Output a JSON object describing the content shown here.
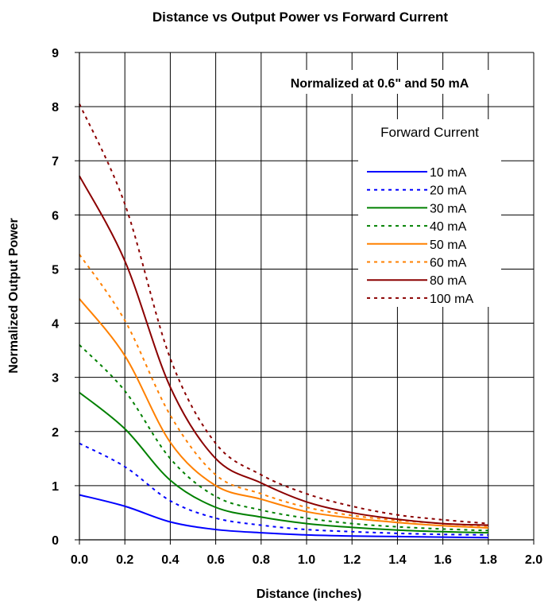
{
  "chart_data": {
    "type": "line",
    "title": "Distance vs Output Power vs Forward Current",
    "xlabel": "Distance (inches)",
    "ylabel": "Normalized Output Power",
    "xlim": [
      0,
      2.0
    ],
    "ylim": [
      0,
      9
    ],
    "x_ticks": [
      "0.0",
      "0.2",
      "0.4",
      "0.6",
      "0.8",
      "1.0",
      "1.2",
      "1.4",
      "1.6",
      "1.8",
      "2.0"
    ],
    "y_ticks": [
      "0",
      "1",
      "2",
      "3",
      "4",
      "5",
      "6",
      "7",
      "8",
      "9"
    ],
    "grid": true,
    "annotation": "Normalized at 0.6\" and 50 mA",
    "legend_title": "Forward Current",
    "legend_position": "right",
    "x": [
      0.0,
      0.2,
      0.4,
      0.6,
      0.8,
      1.0,
      1.2,
      1.4,
      1.6,
      1.8
    ],
    "series": [
      {
        "name": "10 mA",
        "color": "#0000ff",
        "dashed": false,
        "values": [
          0.83,
          0.62,
          0.33,
          0.19,
          0.13,
          0.09,
          0.07,
          0.06,
          0.05,
          0.04
        ]
      },
      {
        "name": "20 mA",
        "color": "#0000ff",
        "dashed": true,
        "values": [
          1.78,
          1.35,
          0.72,
          0.4,
          0.27,
          0.19,
          0.15,
          0.12,
          0.1,
          0.09
        ]
      },
      {
        "name": "30 mA",
        "color": "#008000",
        "dashed": false,
        "values": [
          2.72,
          2.05,
          1.1,
          0.6,
          0.42,
          0.3,
          0.23,
          0.18,
          0.15,
          0.13
        ]
      },
      {
        "name": "40 mA",
        "color": "#008000",
        "dashed": true,
        "values": [
          3.6,
          2.75,
          1.5,
          0.8,
          0.55,
          0.4,
          0.3,
          0.24,
          0.2,
          0.17
        ]
      },
      {
        "name": "50 mA",
        "color": "#ff8000",
        "dashed": false,
        "values": [
          4.45,
          3.4,
          1.8,
          1.0,
          0.75,
          0.52,
          0.4,
          0.32,
          0.26,
          0.22
        ]
      },
      {
        "name": "60 mA",
        "color": "#ff8000",
        "dashed": true,
        "values": [
          5.27,
          4.05,
          2.3,
          1.2,
          0.85,
          0.6,
          0.45,
          0.36,
          0.3,
          0.25
        ]
      },
      {
        "name": "80 mA",
        "color": "#8b0000",
        "dashed": false,
        "values": [
          6.72,
          5.15,
          2.82,
          1.5,
          1.05,
          0.7,
          0.5,
          0.38,
          0.3,
          0.27
        ]
      },
      {
        "name": "100 mA",
        "color": "#8b0000",
        "dashed": true,
        "values": [
          8.05,
          6.2,
          3.35,
          1.78,
          1.2,
          0.85,
          0.62,
          0.46,
          0.37,
          0.3
        ]
      }
    ]
  }
}
